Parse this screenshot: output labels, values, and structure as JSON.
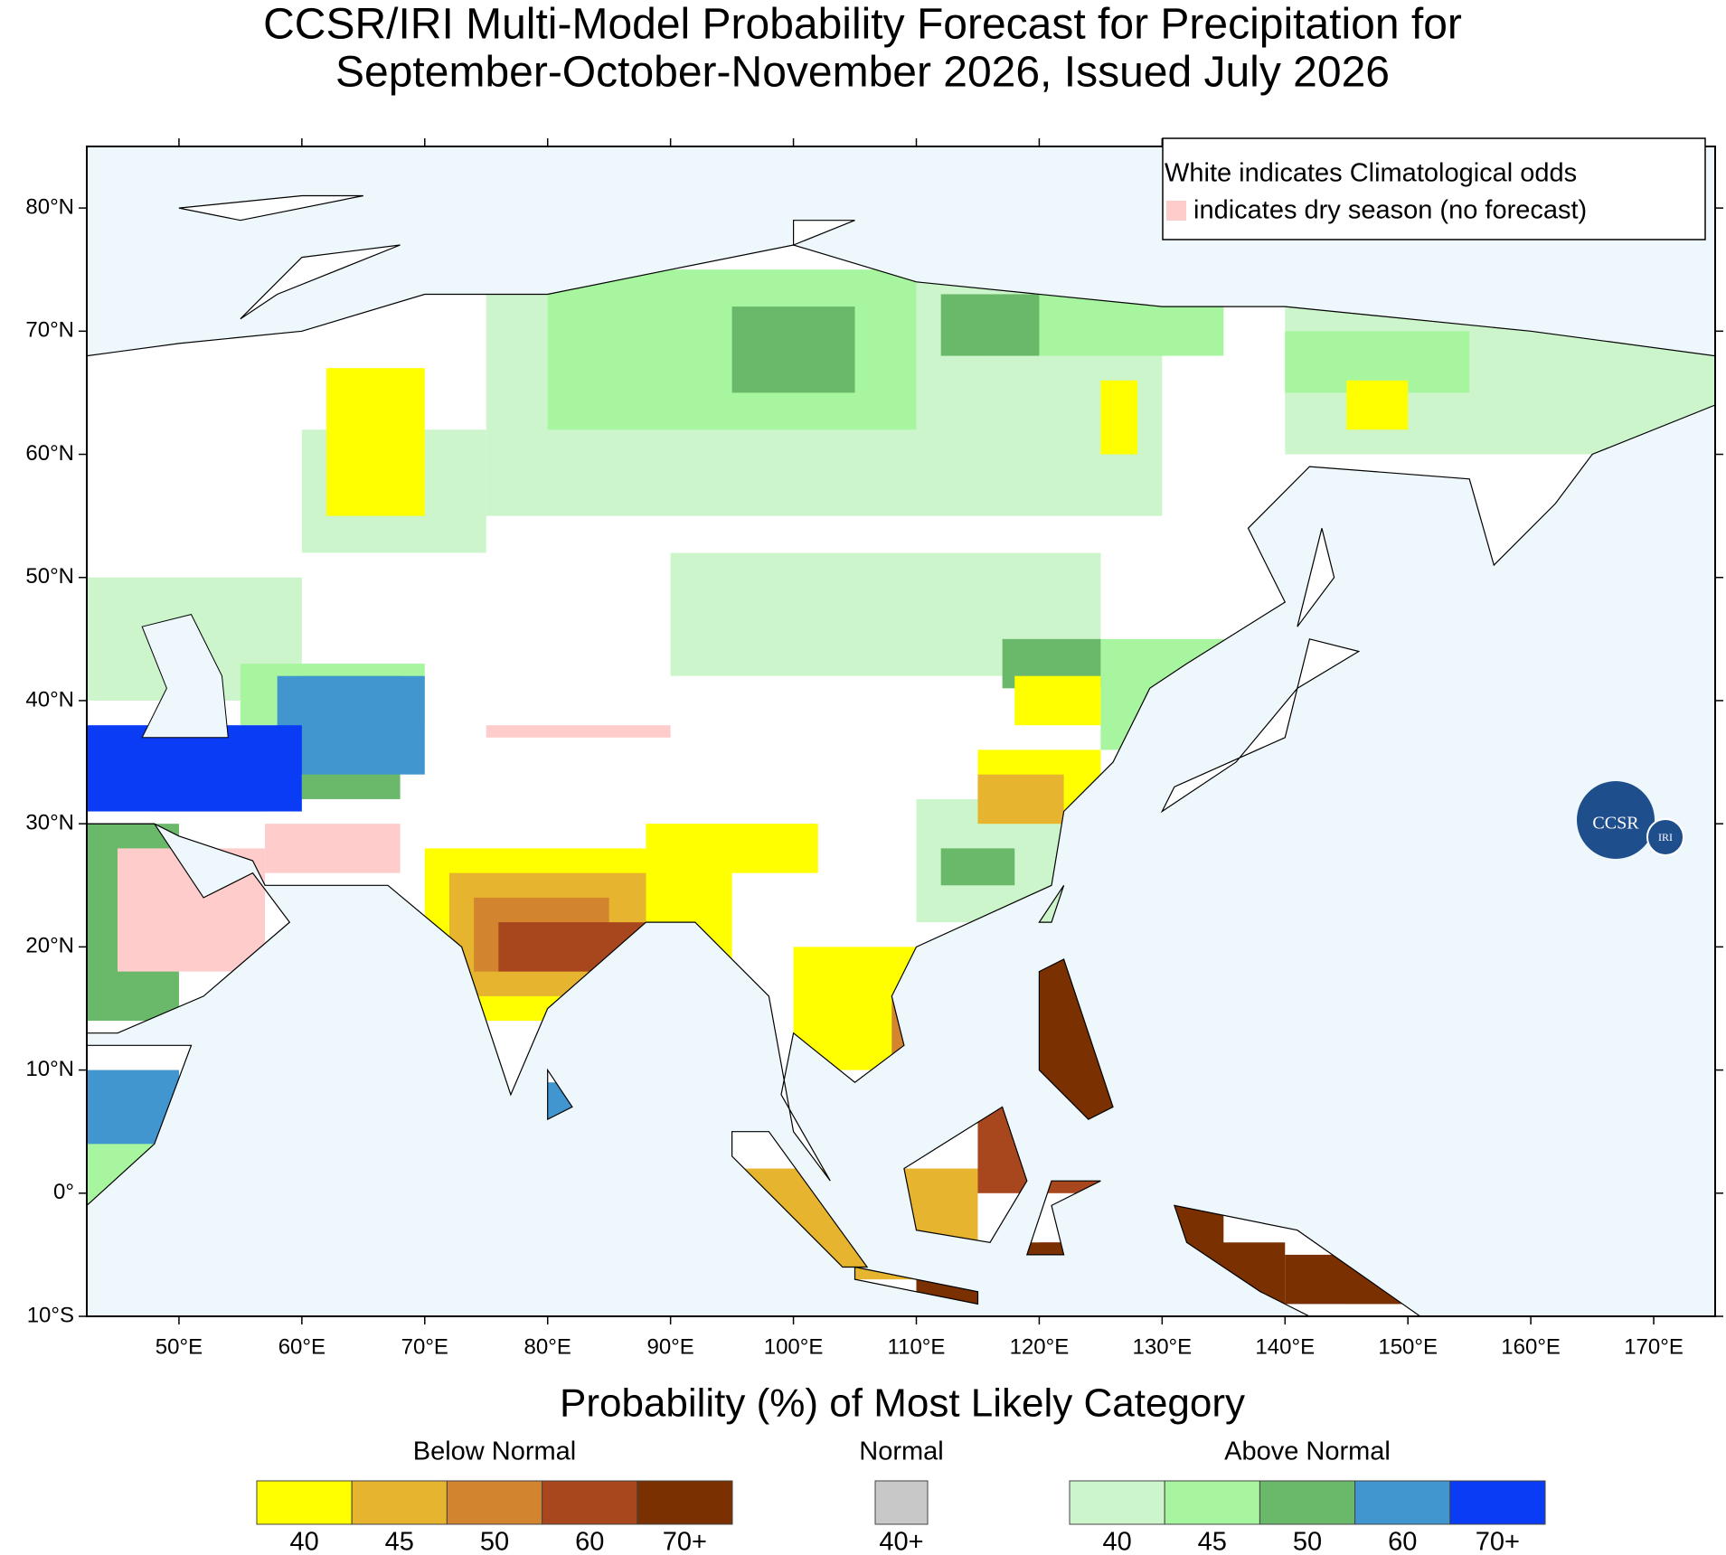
{
  "title": [
    "CCSR/IRI Multi-Model Probability Forecast for Precipitation for",
    "September-October-November 2026, Issued July 2026"
  ],
  "map": {
    "xlim": [
      42.5,
      175
    ],
    "ylim": [
      -10,
      85
    ],
    "ocean_color": "#eef8fc",
    "land_color": "#ffffff",
    "xticks": [
      {
        "value": 50,
        "label": "50°E"
      },
      {
        "value": 60,
        "label": "60°E"
      },
      {
        "value": 70,
        "label": "70°E"
      },
      {
        "value": 80,
        "label": "80°E"
      },
      {
        "value": 90,
        "label": "90°E"
      },
      {
        "value": 100,
        "label": "100°E"
      },
      {
        "value": 110,
        "label": "110°E"
      },
      {
        "value": 120,
        "label": "120°E"
      },
      {
        "value": 130,
        "label": "130°E"
      },
      {
        "value": 140,
        "label": "140°E"
      },
      {
        "value": 150,
        "label": "150°E"
      },
      {
        "value": 160,
        "label": "160°E"
      },
      {
        "value": 170,
        "label": "170°E"
      }
    ],
    "yticks": [
      {
        "value": -10,
        "label": "10°S"
      },
      {
        "value": 0,
        "label": "0°"
      },
      {
        "value": 10,
        "label": "10°N"
      },
      {
        "value": 20,
        "label": "20°N"
      },
      {
        "value": 30,
        "label": "30°N"
      },
      {
        "value": 40,
        "label": "40°N"
      },
      {
        "value": 50,
        "label": "50°N"
      },
      {
        "value": 60,
        "label": "60°N"
      },
      {
        "value": 70,
        "label": "70°N"
      },
      {
        "value": 80,
        "label": "80°N"
      }
    ]
  },
  "note": {
    "line1": "White indicates Climatological odds",
    "line2": "indicates dry season (no forecast)",
    "dry_color": "#ffcccc"
  },
  "logo": {
    "main": "CCSR",
    "sub": "IRI"
  },
  "legend": {
    "title": "Probability (%) of Most Likely Category",
    "groups": [
      {
        "name": "Below Normal",
        "colors": [
          "#ffff00",
          "#e6b42e",
          "#d2852e",
          "#a8461e",
          "#7a3000"
        ],
        "labels": [
          "40",
          "45",
          "50",
          "60",
          "70+"
        ]
      },
      {
        "name": "Normal",
        "colors": [
          "#c8c8c8"
        ],
        "labels": [
          "40+"
        ]
      },
      {
        "name": "Above Normal",
        "colors": [
          "#ccf5cc",
          "#a8f5a0",
          "#6ab86a",
          "#4196d0",
          "#0a3cf5"
        ],
        "labels": [
          "40",
          "45",
          "50",
          "60",
          "70+"
        ]
      }
    ]
  }
}
